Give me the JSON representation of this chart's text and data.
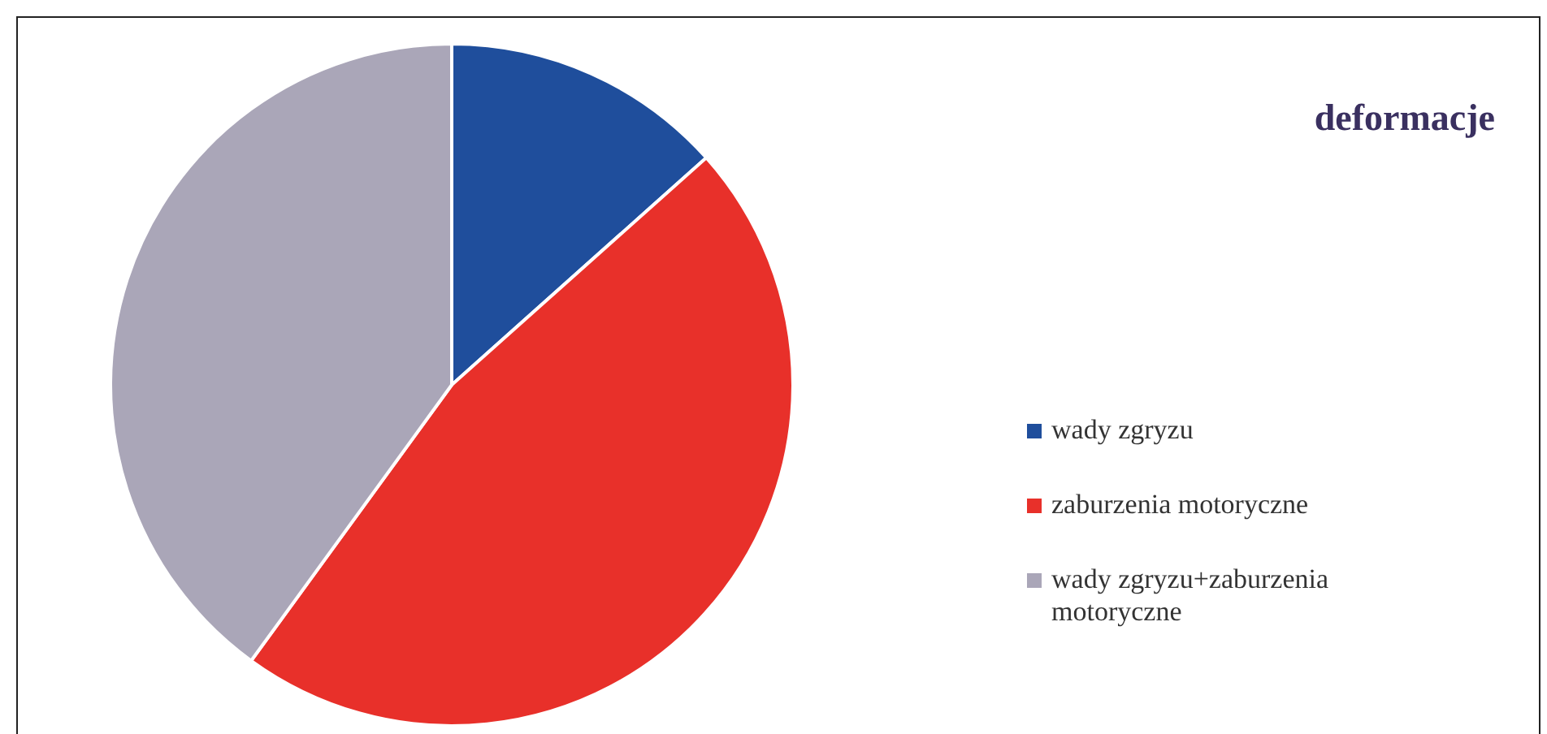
{
  "chart_data": {
    "type": "pie",
    "title": "deformacje",
    "categories": [
      "wady zgryzu",
      "zaburzenia motoryczne",
      "wady zgryzu+zaburzenia motoryczne"
    ],
    "values": [
      13.4,
      46.6,
      40.0
    ],
    "colors": [
      "#1f4e9c",
      "#e8302a",
      "#aaa6b8"
    ],
    "legend": "right"
  }
}
